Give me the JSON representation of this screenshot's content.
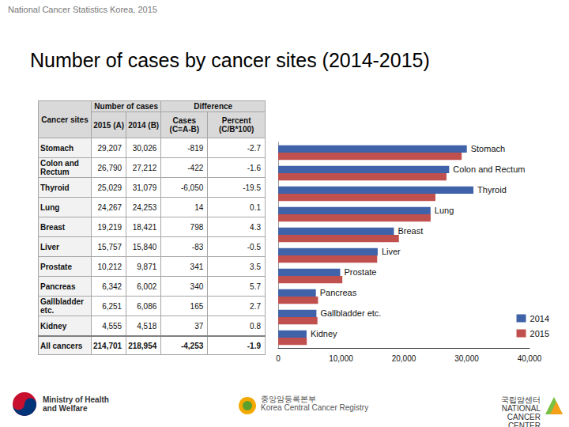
{
  "header": "National Cancer Statistics Korea, 2015",
  "title": "Number of cases by cancer sites (2014-2015)",
  "table": {
    "corner": "Cancer sites",
    "groups": [
      "Number of cases",
      "Difference"
    ],
    "columns": [
      "2015 (A)",
      "2014 (B)",
      "Cases (C=A-B)",
      "Percent (C/B*100)"
    ],
    "rows": [
      [
        "Stomach",
        "29,207",
        "30,026",
        "-819",
        "-2.7"
      ],
      [
        "Colon and Rectum",
        "26,790",
        "27,212",
        "-422",
        "-1.6"
      ],
      [
        "Thyroid",
        "25,029",
        "31,079",
        "-6,050",
        "-19.5"
      ],
      [
        "Lung",
        "24,267",
        "24,253",
        "14",
        "0.1"
      ],
      [
        "Breast",
        "19,219",
        "18,421",
        "798",
        "4.3"
      ],
      [
        "Liver",
        "15,757",
        "15,840",
        "-83",
        "-0.5"
      ],
      [
        "Prostate",
        "10,212",
        "9,871",
        "341",
        "3.5"
      ],
      [
        "Pancreas",
        "6,342",
        "6,002",
        "340",
        "5.7"
      ],
      [
        "Gallbladder etc.",
        "6,251",
        "6,086",
        "165",
        "2.7"
      ],
      [
        "Kidney",
        "4,555",
        "4,518",
        "37",
        "0.8"
      ]
    ],
    "total": [
      "All cancers",
      "214,701",
      "218,954",
      "-4,253",
      "-1.9"
    ]
  },
  "chart_data": {
    "type": "bar",
    "orientation": "horizontal",
    "categories": [
      "Stomach",
      "Colon and Rectum",
      "Thyroid",
      "Lung",
      "Breast",
      "Liver",
      "Prostate",
      "Pancreas",
      "Gallbladder etc.",
      "Kidney"
    ],
    "series": [
      {
        "name": "2014",
        "color": "#3f62a8",
        "values": [
          30026,
          27212,
          31079,
          24253,
          18421,
          15840,
          9871,
          6002,
          6086,
          4518
        ]
      },
      {
        "name": "2015",
        "color": "#c0504d",
        "values": [
          29207,
          26790,
          25029,
          24267,
          19219,
          15757,
          10212,
          6342,
          6251,
          4555
        ]
      }
    ],
    "xlim": [
      0,
      40000
    ],
    "xticks": [
      0,
      {
        "value": 10000,
        "label": "10,000"
      },
      {
        "value": 20000,
        "label": "20,000"
      },
      {
        "value": 30000,
        "label": "30,000"
      },
      {
        "value": 40000,
        "label": "40,000"
      }
    ],
    "grid": false,
    "legend": "lower right"
  },
  "footer": {
    "ministry": [
      "Ministry of Health",
      "and Welfare"
    ],
    "registry": [
      "중앙암등록본부",
      "Korea Central Cancer Registry"
    ],
    "center": [
      "국립암센터",
      "NATIONAL CANCER CENTER"
    ]
  }
}
